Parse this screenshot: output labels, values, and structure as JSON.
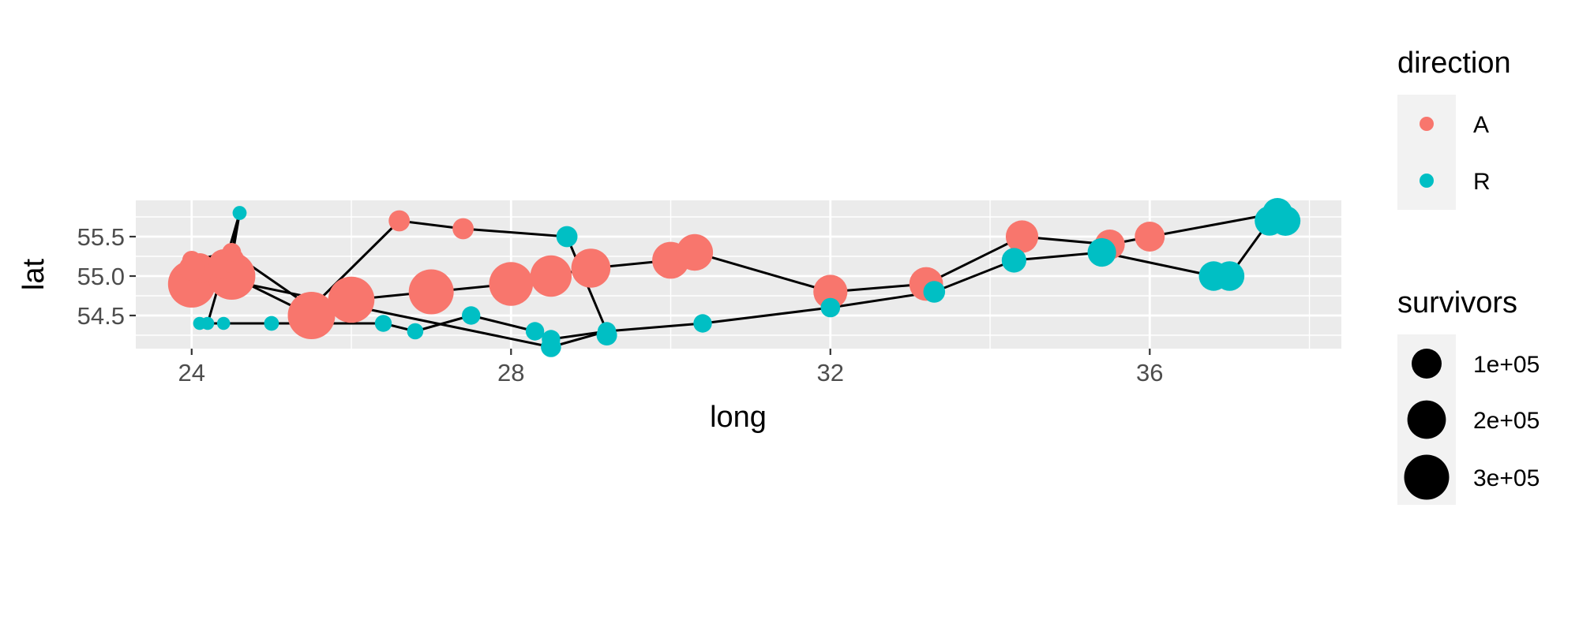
{
  "chart_data": {
    "type": "scatter",
    "title": "",
    "xlabel": "long",
    "ylabel": "lat",
    "xlim": [
      23.3,
      38.4
    ],
    "ylim": [
      54.08,
      55.96
    ],
    "x_ticks": [
      24,
      28,
      32,
      36
    ],
    "x_tick_labels": [
      "24",
      "28",
      "32",
      "36"
    ],
    "y_ticks": [
      54.5,
      55.0,
      55.5
    ],
    "y_tick_labels": [
      "54.5",
      "55.0",
      "55.5"
    ],
    "grid": true,
    "legend_position": "right",
    "colors": {
      "A": "#F8766D",
      "R": "#00BFC4",
      "line": "#000000",
      "panel": "#EBEBEB",
      "grid": "#FFFFFF"
    },
    "legends": {
      "direction": {
        "title": "direction",
        "items": [
          {
            "label": "A",
            "color": "#F8766D"
          },
          {
            "label": "R",
            "color": "#00BFC4"
          }
        ]
      },
      "survivors": {
        "title": "survivors",
        "items": [
          {
            "label": "1e+05",
            "value": 100000
          },
          {
            "label": "2e+05",
            "value": 200000
          },
          {
            "label": "3e+05",
            "value": 300000
          }
        ]
      }
    },
    "size_range": [
      1000,
      340000
    ],
    "paths": [
      [
        [
          24.0,
          54.9
        ],
        [
          24.5,
          55.0
        ],
        [
          25.5,
          54.5
        ],
        [
          26.0,
          54.7
        ],
        [
          27.0,
          54.8
        ],
        [
          28.0,
          54.9
        ],
        [
          28.5,
          55.0
        ],
        [
          29.0,
          55.1
        ],
        [
          30.0,
          55.2
        ],
        [
          30.3,
          55.3
        ],
        [
          32.0,
          54.8
        ],
        [
          33.2,
          54.9
        ],
        [
          34.4,
          55.5
        ],
        [
          35.5,
          55.4
        ],
        [
          36.0,
          55.5
        ],
        [
          37.6,
          55.8
        ],
        [
          37.7,
          55.7
        ],
        [
          37.5,
          55.7
        ],
        [
          37.0,
          55.0
        ],
        [
          36.8,
          55.0
        ],
        [
          35.4,
          55.3
        ],
        [
          34.3,
          55.2
        ],
        [
          33.3,
          54.8
        ],
        [
          32.0,
          54.6
        ],
        [
          30.4,
          54.4
        ],
        [
          29.2,
          54.3
        ],
        [
          28.5,
          54.2
        ],
        [
          28.3,
          54.3
        ],
        [
          27.5,
          54.5
        ],
        [
          26.8,
          54.3
        ],
        [
          26.4,
          54.4
        ],
        [
          25.0,
          54.4
        ],
        [
          24.4,
          54.4
        ],
        [
          24.2,
          54.4
        ],
        [
          24.1,
          54.4
        ]
      ],
      [
        [
          24.0,
          55.1
        ],
        [
          24.5,
          55.2
        ],
        [
          24.6,
          55.8
        ],
        [
          24.2,
          54.4
        ],
        [
          24.1,
          54.4
        ]
      ],
      [
        [
          24.0,
          55.2
        ],
        [
          24.5,
          55.3
        ],
        [
          24.6,
          55.8
        ]
      ],
      [
        [
          24.0,
          55.1
        ],
        [
          24.5,
          55.3
        ],
        [
          25.5,
          54.6
        ],
        [
          26.6,
          55.7
        ],
        [
          27.4,
          55.6
        ],
        [
          28.7,
          55.5
        ],
        [
          29.2,
          54.3
        ],
        [
          28.5,
          54.1
        ],
        [
          24.2,
          55.0
        ]
      ]
    ],
    "points": [
      {
        "x": 24.0,
        "y": 54.9,
        "survivors": 340000,
        "direction": "A"
      },
      {
        "x": 24.5,
        "y": 55.0,
        "survivors": 340000,
        "direction": "A"
      },
      {
        "x": 25.5,
        "y": 54.5,
        "survivors": 340000,
        "direction": "A"
      },
      {
        "x": 26.0,
        "y": 54.7,
        "survivors": 320000,
        "direction": "A"
      },
      {
        "x": 27.0,
        "y": 54.8,
        "survivors": 300000,
        "direction": "A"
      },
      {
        "x": 28.0,
        "y": 54.9,
        "survivors": 280000,
        "direction": "A"
      },
      {
        "x": 28.5,
        "y": 55.0,
        "survivors": 240000,
        "direction": "A"
      },
      {
        "x": 29.0,
        "y": 55.1,
        "survivors": 210000,
        "direction": "A"
      },
      {
        "x": 30.0,
        "y": 55.2,
        "survivors": 180000,
        "direction": "A"
      },
      {
        "x": 30.3,
        "y": 55.3,
        "survivors": 175000,
        "direction": "A"
      },
      {
        "x": 32.0,
        "y": 54.8,
        "survivors": 145000,
        "direction": "A"
      },
      {
        "x": 33.2,
        "y": 54.9,
        "survivors": 140000,
        "direction": "A"
      },
      {
        "x": 34.4,
        "y": 55.5,
        "survivors": 127100,
        "direction": "A"
      },
      {
        "x": 35.5,
        "y": 55.4,
        "survivors": 100000,
        "direction": "A"
      },
      {
        "x": 36.0,
        "y": 55.5,
        "survivors": 100000,
        "direction": "A"
      },
      {
        "x": 37.6,
        "y": 55.8,
        "survivors": 100000,
        "direction": "R"
      },
      {
        "x": 37.7,
        "y": 55.7,
        "survivors": 100000,
        "direction": "R"
      },
      {
        "x": 37.5,
        "y": 55.7,
        "survivors": 98000,
        "direction": "R"
      },
      {
        "x": 37.0,
        "y": 55.0,
        "survivors": 97000,
        "direction": "R"
      },
      {
        "x": 36.8,
        "y": 55.0,
        "survivors": 96000,
        "direction": "R"
      },
      {
        "x": 35.4,
        "y": 55.3,
        "survivors": 87000,
        "direction": "R"
      },
      {
        "x": 34.3,
        "y": 55.2,
        "survivors": 55000,
        "direction": "R"
      },
      {
        "x": 33.3,
        "y": 54.8,
        "survivors": 37000,
        "direction": "R"
      },
      {
        "x": 32.0,
        "y": 54.6,
        "survivors": 24000,
        "direction": "R"
      },
      {
        "x": 30.4,
        "y": 54.4,
        "survivors": 20000,
        "direction": "R"
      },
      {
        "x": 29.2,
        "y": 54.3,
        "survivors": 20000,
        "direction": "R"
      },
      {
        "x": 28.5,
        "y": 54.2,
        "survivors": 20000,
        "direction": "R"
      },
      {
        "x": 28.3,
        "y": 54.3,
        "survivors": 20000,
        "direction": "R"
      },
      {
        "x": 27.5,
        "y": 54.5,
        "survivors": 20000,
        "direction": "R"
      },
      {
        "x": 26.8,
        "y": 54.3,
        "survivors": 12000,
        "direction": "R"
      },
      {
        "x": 26.4,
        "y": 54.4,
        "survivors": 14000,
        "direction": "R"
      },
      {
        "x": 25.0,
        "y": 54.4,
        "survivors": 8000,
        "direction": "R"
      },
      {
        "x": 24.4,
        "y": 54.4,
        "survivors": 4000,
        "direction": "R"
      },
      {
        "x": 24.2,
        "y": 54.4,
        "survivors": 4000,
        "direction": "R"
      },
      {
        "x": 24.1,
        "y": 54.4,
        "survivors": 4000,
        "direction": "R"
      },
      {
        "x": 24.0,
        "y": 55.1,
        "survivors": 60000,
        "direction": "A"
      },
      {
        "x": 24.5,
        "y": 55.2,
        "survivors": 60000,
        "direction": "A"
      },
      {
        "x": 24.6,
        "y": 55.8,
        "survivors": 6000,
        "direction": "R"
      },
      {
        "x": 24.0,
        "y": 55.2,
        "survivors": 22000,
        "direction": "A"
      },
      {
        "x": 24.5,
        "y": 55.3,
        "survivors": 22000,
        "direction": "A"
      },
      {
        "x": 24.1,
        "y": 55.1,
        "survivors": 100000,
        "direction": "A"
      },
      {
        "x": 24.4,
        "y": 55.15,
        "survivors": 100000,
        "direction": "A"
      },
      {
        "x": 26.6,
        "y": 55.7,
        "survivors": 33000,
        "direction": "A"
      },
      {
        "x": 27.4,
        "y": 55.6,
        "survivors": 33000,
        "direction": "A"
      },
      {
        "x": 28.7,
        "y": 55.5,
        "survivors": 33000,
        "direction": "R"
      },
      {
        "x": 29.2,
        "y": 54.25,
        "survivors": 30000,
        "direction": "R"
      },
      {
        "x": 28.5,
        "y": 54.1,
        "survivors": 28000,
        "direction": "R"
      }
    ]
  }
}
